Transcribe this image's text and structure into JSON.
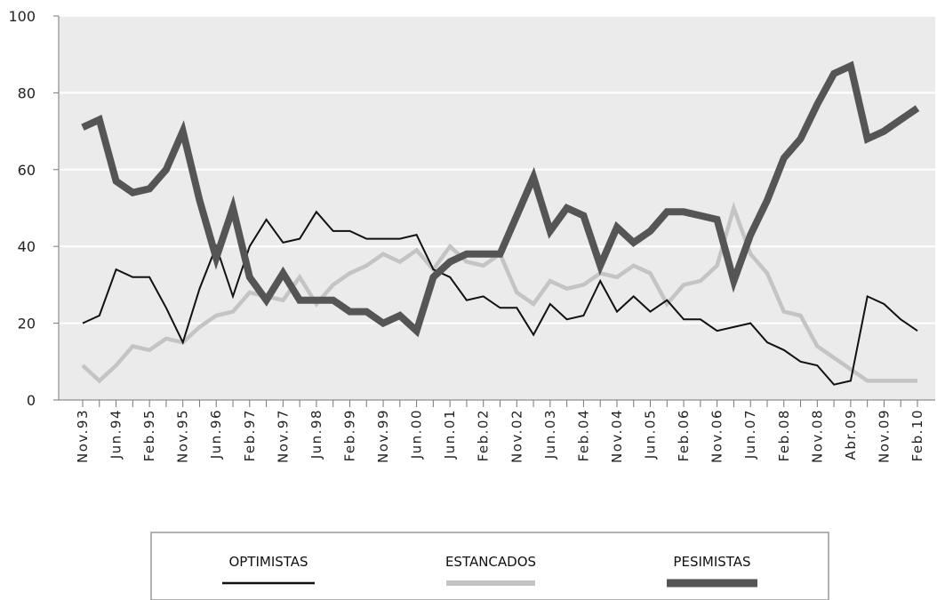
{
  "chart_data": {
    "type": "line",
    "title": "",
    "xlabel": "",
    "ylabel": "",
    "ylim": [
      0,
      100
    ],
    "yticks": [
      "0",
      "20",
      "40",
      "60",
      "80",
      "100"
    ],
    "grid": "horizontal",
    "legend_position": "bottom",
    "categories": [
      "Nov.93",
      "",
      "Jun.94",
      "",
      "Feb.95",
      "",
      "Nov.95",
      "",
      "Jun.96",
      "",
      "Feb.97",
      "",
      "Nov.97",
      "",
      "Jun.98",
      "",
      "Feb.99",
      "",
      "Nov.99",
      "",
      "Jun.00",
      "",
      "Jun.01",
      "",
      "Feb.02",
      "",
      "Nov.02",
      "",
      "Jun.03",
      "",
      "Feb.04",
      "",
      "Nov.04",
      "",
      "Jun.05",
      "",
      "Feb.06",
      "",
      "Nov.06",
      "",
      "Jun.07",
      "",
      "Feb.08",
      "",
      "Nov.08",
      "",
      "Abr.09",
      "",
      "Nov.09",
      "",
      "Feb.10"
    ],
    "series": [
      {
        "name": "OPTIMISTAS",
        "color": "#111111",
        "values": [
          20,
          22,
          34,
          32,
          32,
          24,
          15,
          29,
          40,
          27,
          40,
          47,
          41,
          42,
          49,
          44,
          44,
          42,
          42,
          42,
          43,
          34,
          32,
          26,
          27,
          24,
          24,
          17,
          25,
          21,
          22,
          31,
          23,
          27,
          23,
          26,
          21,
          21,
          18,
          19,
          20,
          15,
          13,
          10,
          9,
          4,
          5,
          27,
          25,
          21,
          18
        ]
      },
      {
        "name": "ESTANCADOS",
        "color": "#c4c4c4",
        "values": [
          9,
          5,
          9,
          14,
          13,
          16,
          15,
          19,
          22,
          23,
          28,
          27,
          26,
          32,
          25,
          30,
          33,
          35,
          38,
          36,
          39,
          34,
          40,
          36,
          35,
          38,
          28,
          25,
          31,
          29,
          30,
          33,
          32,
          35,
          33,
          25,
          30,
          31,
          35,
          50,
          38,
          33,
          23,
          22,
          14,
          11,
          8,
          5,
          5,
          5,
          5
        ]
      },
      {
        "name": "PESIMISTAS",
        "color": "#555555",
        "values": [
          71,
          73,
          57,
          54,
          55,
          60,
          70,
          52,
          37,
          50,
          32,
          26,
          33,
          26,
          26,
          26,
          23,
          23,
          20,
          22,
          18,
          32,
          36,
          38,
          38,
          38,
          48,
          58,
          44,
          50,
          48,
          35,
          45,
          41,
          44,
          49,
          49,
          48,
          47,
          31,
          43,
          52,
          63,
          68,
          77,
          85,
          87,
          68,
          70,
          73,
          76
        ]
      }
    ]
  },
  "legend": {
    "items": [
      {
        "label": "OPTIMISTAS",
        "color": "#111111"
      },
      {
        "label": "ESTANCADOS",
        "color": "#c4c4c4"
      },
      {
        "label": "PESIMISTAS",
        "color": "#555555"
      }
    ]
  }
}
